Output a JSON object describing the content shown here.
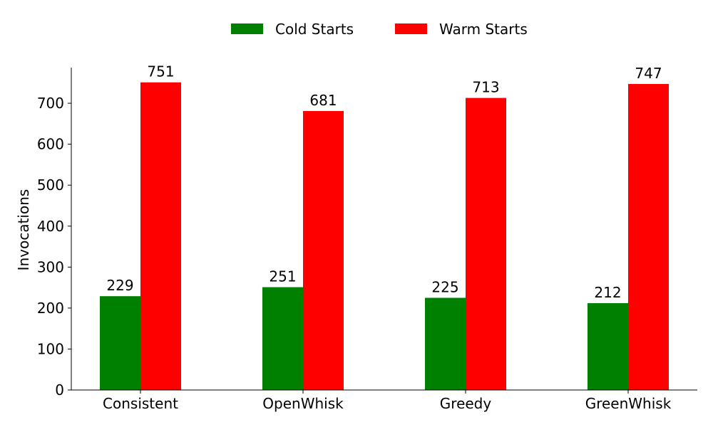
{
  "chart_data": {
    "type": "bar",
    "categories": [
      "Consistent",
      "OpenWhisk",
      "Greedy",
      "GreenWhisk"
    ],
    "series": [
      {
        "name": "Cold Starts",
        "values": [
          229,
          251,
          225,
          212
        ],
        "color": "#008000"
      },
      {
        "name": "Warm Starts",
        "values": [
          751,
          681,
          713,
          747
        ],
        "color": "#ff0000"
      }
    ],
    "ylabel": "Invocations",
    "xlabel": "",
    "ylim": [
      0,
      787
    ],
    "yticks": [
      0,
      100,
      200,
      300,
      400,
      500,
      600,
      700
    ],
    "grid": false,
    "legend_position": "top-center"
  }
}
